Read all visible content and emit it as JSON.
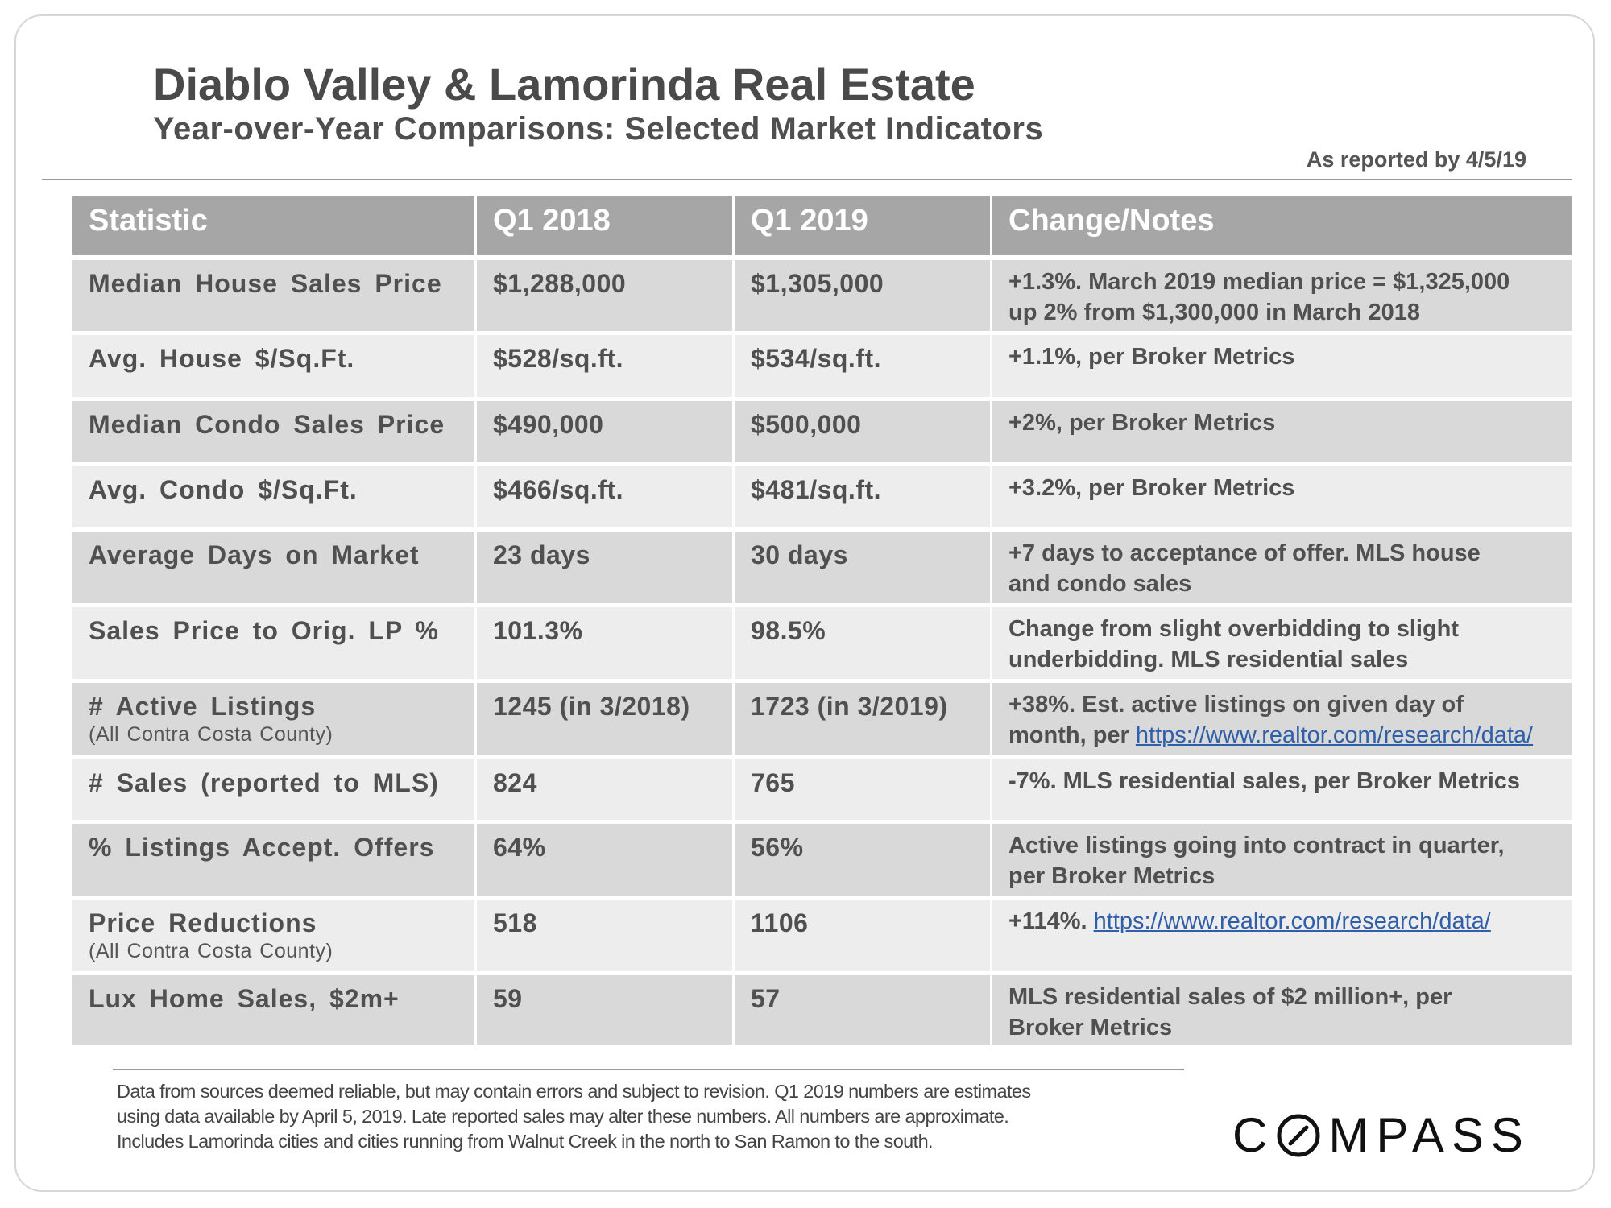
{
  "header": {
    "title": "Diablo Valley & Lamorinda Real Estate",
    "subtitle": "Year-over-Year Comparisons:  Selected Market Indicators",
    "reported": "As  reported by 4/5/19"
  },
  "table": {
    "columns": [
      "Statistic",
      "Q1 2018",
      "Q1 2019",
      "Change/Notes"
    ],
    "rows": [
      {
        "stat": "Median  House  Sales  Price",
        "q1_2018": "$1,288,000",
        "q1_2019": "$1,305,000",
        "notes_line1": "+1.3%. March 2019 median price = $1,325,000",
        "notes_line2": "up 2% from $1,300,000 in March 2018"
      },
      {
        "stat": "Avg.  House  $/Sq.Ft.",
        "q1_2018": "$528/sq.ft.",
        "q1_2019": "$534/sq.ft.",
        "notes_line1": "+1.1%, per Broker Metrics"
      },
      {
        "stat": "Median  Condo  Sales  Price",
        "q1_2018": "$490,000",
        "q1_2019": "$500,000",
        "notes_line1": "+2%, per Broker Metrics"
      },
      {
        "stat": "Avg.  Condo  $/Sq.Ft.",
        "q1_2018": "$466/sq.ft.",
        "q1_2019": "$481/sq.ft.",
        "notes_line1": "+3.2%, per Broker Metrics"
      },
      {
        "stat": "Average  Days  on  Market",
        "q1_2018": "23  days",
        "q1_2019": "30  days",
        "notes_line1": "+7 days to acceptance of offer. MLS house",
        "notes_line2": "and condo sales"
      },
      {
        "stat": "Sales  Price  to  Orig.  LP  %",
        "q1_2018": "101.3%",
        "q1_2019": "98.5%",
        "notes_line1": "Change from slight overbidding to slight",
        "notes_line2": "underbidding. MLS residential sales"
      },
      {
        "stat": "# Active  Listings",
        "stat_sub": "(All Contra  Costa County)",
        "q1_2018": "1245  (in 3/2018)",
        "q1_2019": "1723  (in 3/2019)",
        "notes_line1": "+38%. Est. active listings on given day of",
        "notes_line2": "month, per ",
        "notes_link": "https://www.realtor.com/research/data/"
      },
      {
        "stat": "# Sales  (reported  to  MLS)",
        "q1_2018": "824",
        "q1_2019": "765",
        "notes_line1": "-7%. MLS residential sales, per Broker Metrics"
      },
      {
        "stat": "% Listings  Accept.  Offers",
        "q1_2018": "64%",
        "q1_2019": "56%",
        "notes_line1": "Active listings going into contract in quarter,",
        "notes_line2": "per Broker Metrics"
      },
      {
        "stat": "Price  Reductions",
        "stat_sub": "(All  Contra  Costa  County)",
        "q1_2018": "518",
        "q1_2019": "1106",
        "notes_line1": "+114%. ",
        "notes_link": "https://www.realtor.com/research/data/"
      },
      {
        "stat": "Lux  Home  Sales,  $2m+",
        "q1_2018": "59",
        "q1_2019": "57",
        "notes_line1": "MLS residential sales of $2 million+, per",
        "notes_line2": "Broker Metrics"
      }
    ]
  },
  "footer": {
    "disclaimer_1": "Data from sources deemed reliable, but may contain errors and subject to revision. Q1 2019 numbers are estimates",
    "disclaimer_2": "using data available by April 5, 2019. Late reported sales may alter these numbers. All numbers are approximate.",
    "disclaimer_3": "Includes Lamorinda cities and cities running from Walnut Creek in the north to San Ramon to the south.",
    "logo_c": "C",
    "logo_rest": "MPASS"
  },
  "colors": {
    "header_bg": "#a6a6a6",
    "row_dark": "#d9d9d9",
    "row_light": "#ededed",
    "link": "#2f5fa8"
  }
}
